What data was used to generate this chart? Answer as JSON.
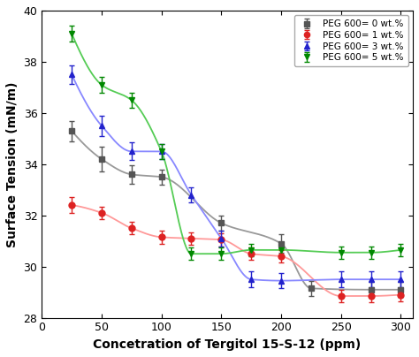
{
  "title": "",
  "xlabel": "Concetration of Tergitol 15-S-12 (ppm)",
  "ylabel": "Surface Tension (mN/m)",
  "xlim": [
    0,
    310
  ],
  "ylim": [
    28,
    40
  ],
  "xticks": [
    0,
    50,
    100,
    150,
    200,
    250,
    300
  ],
  "yticks": [
    28,
    30,
    32,
    34,
    36,
    38,
    40
  ],
  "series": [
    {
      "label": "PEG 600= 0 wt.%",
      "color": "#555555",
      "line_color": "#999999",
      "marker": "s",
      "x": [
        25,
        50,
        75,
        100,
        150,
        200,
        225,
        275,
        300
      ],
      "y": [
        35.3,
        34.2,
        33.6,
        33.5,
        31.7,
        30.9,
        29.15,
        29.1,
        29.1
      ],
      "yerr": [
        0.4,
        0.5,
        0.35,
        0.3,
        0.3,
        0.35,
        0.3,
        0.3,
        0.3
      ]
    },
    {
      "label": "PEG 600= 1 wt.%",
      "color": "#dd2222",
      "line_color": "#ff9999",
      "marker": "o",
      "x": [
        25,
        50,
        75,
        100,
        125,
        150,
        175,
        200,
        250,
        275,
        300
      ],
      "y": [
        32.4,
        32.1,
        31.5,
        31.15,
        31.1,
        31.05,
        30.5,
        30.4,
        28.85,
        28.85,
        28.9
      ],
      "yerr": [
        0.3,
        0.25,
        0.25,
        0.25,
        0.25,
        0.25,
        0.25,
        0.25,
        0.25,
        0.25,
        0.25
      ]
    },
    {
      "label": "PEG 600= 3 wt.%",
      "color": "#2222cc",
      "line_color": "#8888ff",
      "marker": "^",
      "x": [
        25,
        50,
        75,
        100,
        125,
        150,
        175,
        200,
        250,
        275,
        300
      ],
      "y": [
        37.5,
        35.5,
        34.5,
        34.5,
        32.8,
        31.1,
        29.5,
        29.45,
        29.5,
        29.5,
        29.5
      ],
      "yerr": [
        0.35,
        0.4,
        0.35,
        0.3,
        0.3,
        0.3,
        0.3,
        0.3,
        0.3,
        0.3,
        0.3
      ]
    },
    {
      "label": "PEG 600= 5 wt.%",
      "color": "#008800",
      "line_color": "#55cc55",
      "marker": "v",
      "x": [
        25,
        50,
        75,
        100,
        125,
        150,
        175,
        200,
        250,
        275,
        300
      ],
      "y": [
        39.1,
        37.1,
        36.5,
        34.5,
        30.5,
        30.5,
        30.65,
        30.65,
        30.55,
        30.55,
        30.65
      ],
      "yerr": [
        0.3,
        0.3,
        0.3,
        0.3,
        0.25,
        0.25,
        0.25,
        0.25,
        0.25,
        0.25,
        0.25
      ]
    }
  ]
}
